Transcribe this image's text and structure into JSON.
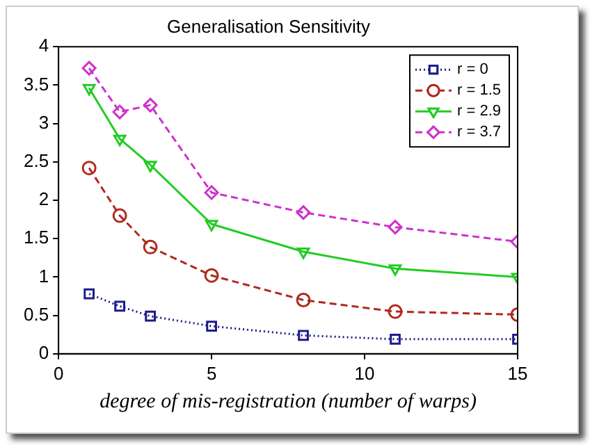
{
  "chart_data": {
    "type": "line",
    "title": "Generalisation Sensitivity",
    "xlabel": "degree of mis-registration (number of warps)",
    "x": [
      1,
      2,
      3,
      5,
      8,
      11,
      15
    ],
    "series": [
      {
        "name": "r = 0",
        "color": "#1c1c8c",
        "values": [
          0.78,
          0.62,
          0.49,
          0.36,
          0.24,
          0.19,
          0.19
        ],
        "marker": "square",
        "line_style": "dotted"
      },
      {
        "name": "r = 1.5",
        "color": "#b02a1e",
        "values": [
          2.42,
          1.8,
          1.39,
          1.02,
          0.7,
          0.55,
          0.51
        ],
        "marker": "circle",
        "line_style": "dashed"
      },
      {
        "name": "r = 2.9",
        "color": "#22cc22",
        "values": [
          3.46,
          2.8,
          2.46,
          1.69,
          1.33,
          1.11,
          1.0
        ],
        "marker": "triangle",
        "line_style": "solid"
      },
      {
        "name": "r = 3.7",
        "color": "#cc33cc",
        "values": [
          3.72,
          3.15,
          3.24,
          2.1,
          1.84,
          1.65,
          1.46
        ],
        "marker": "diamond",
        "line_style": "dashed"
      }
    ],
    "xlim": [
      0,
      15
    ],
    "xticks": [
      0,
      5,
      10,
      15
    ],
    "ylim": [
      0,
      4
    ],
    "yticks": [
      0,
      0.5,
      1,
      1.5,
      2,
      2.5,
      3,
      3.5,
      4
    ],
    "grid": false,
    "legend": "top right"
  }
}
